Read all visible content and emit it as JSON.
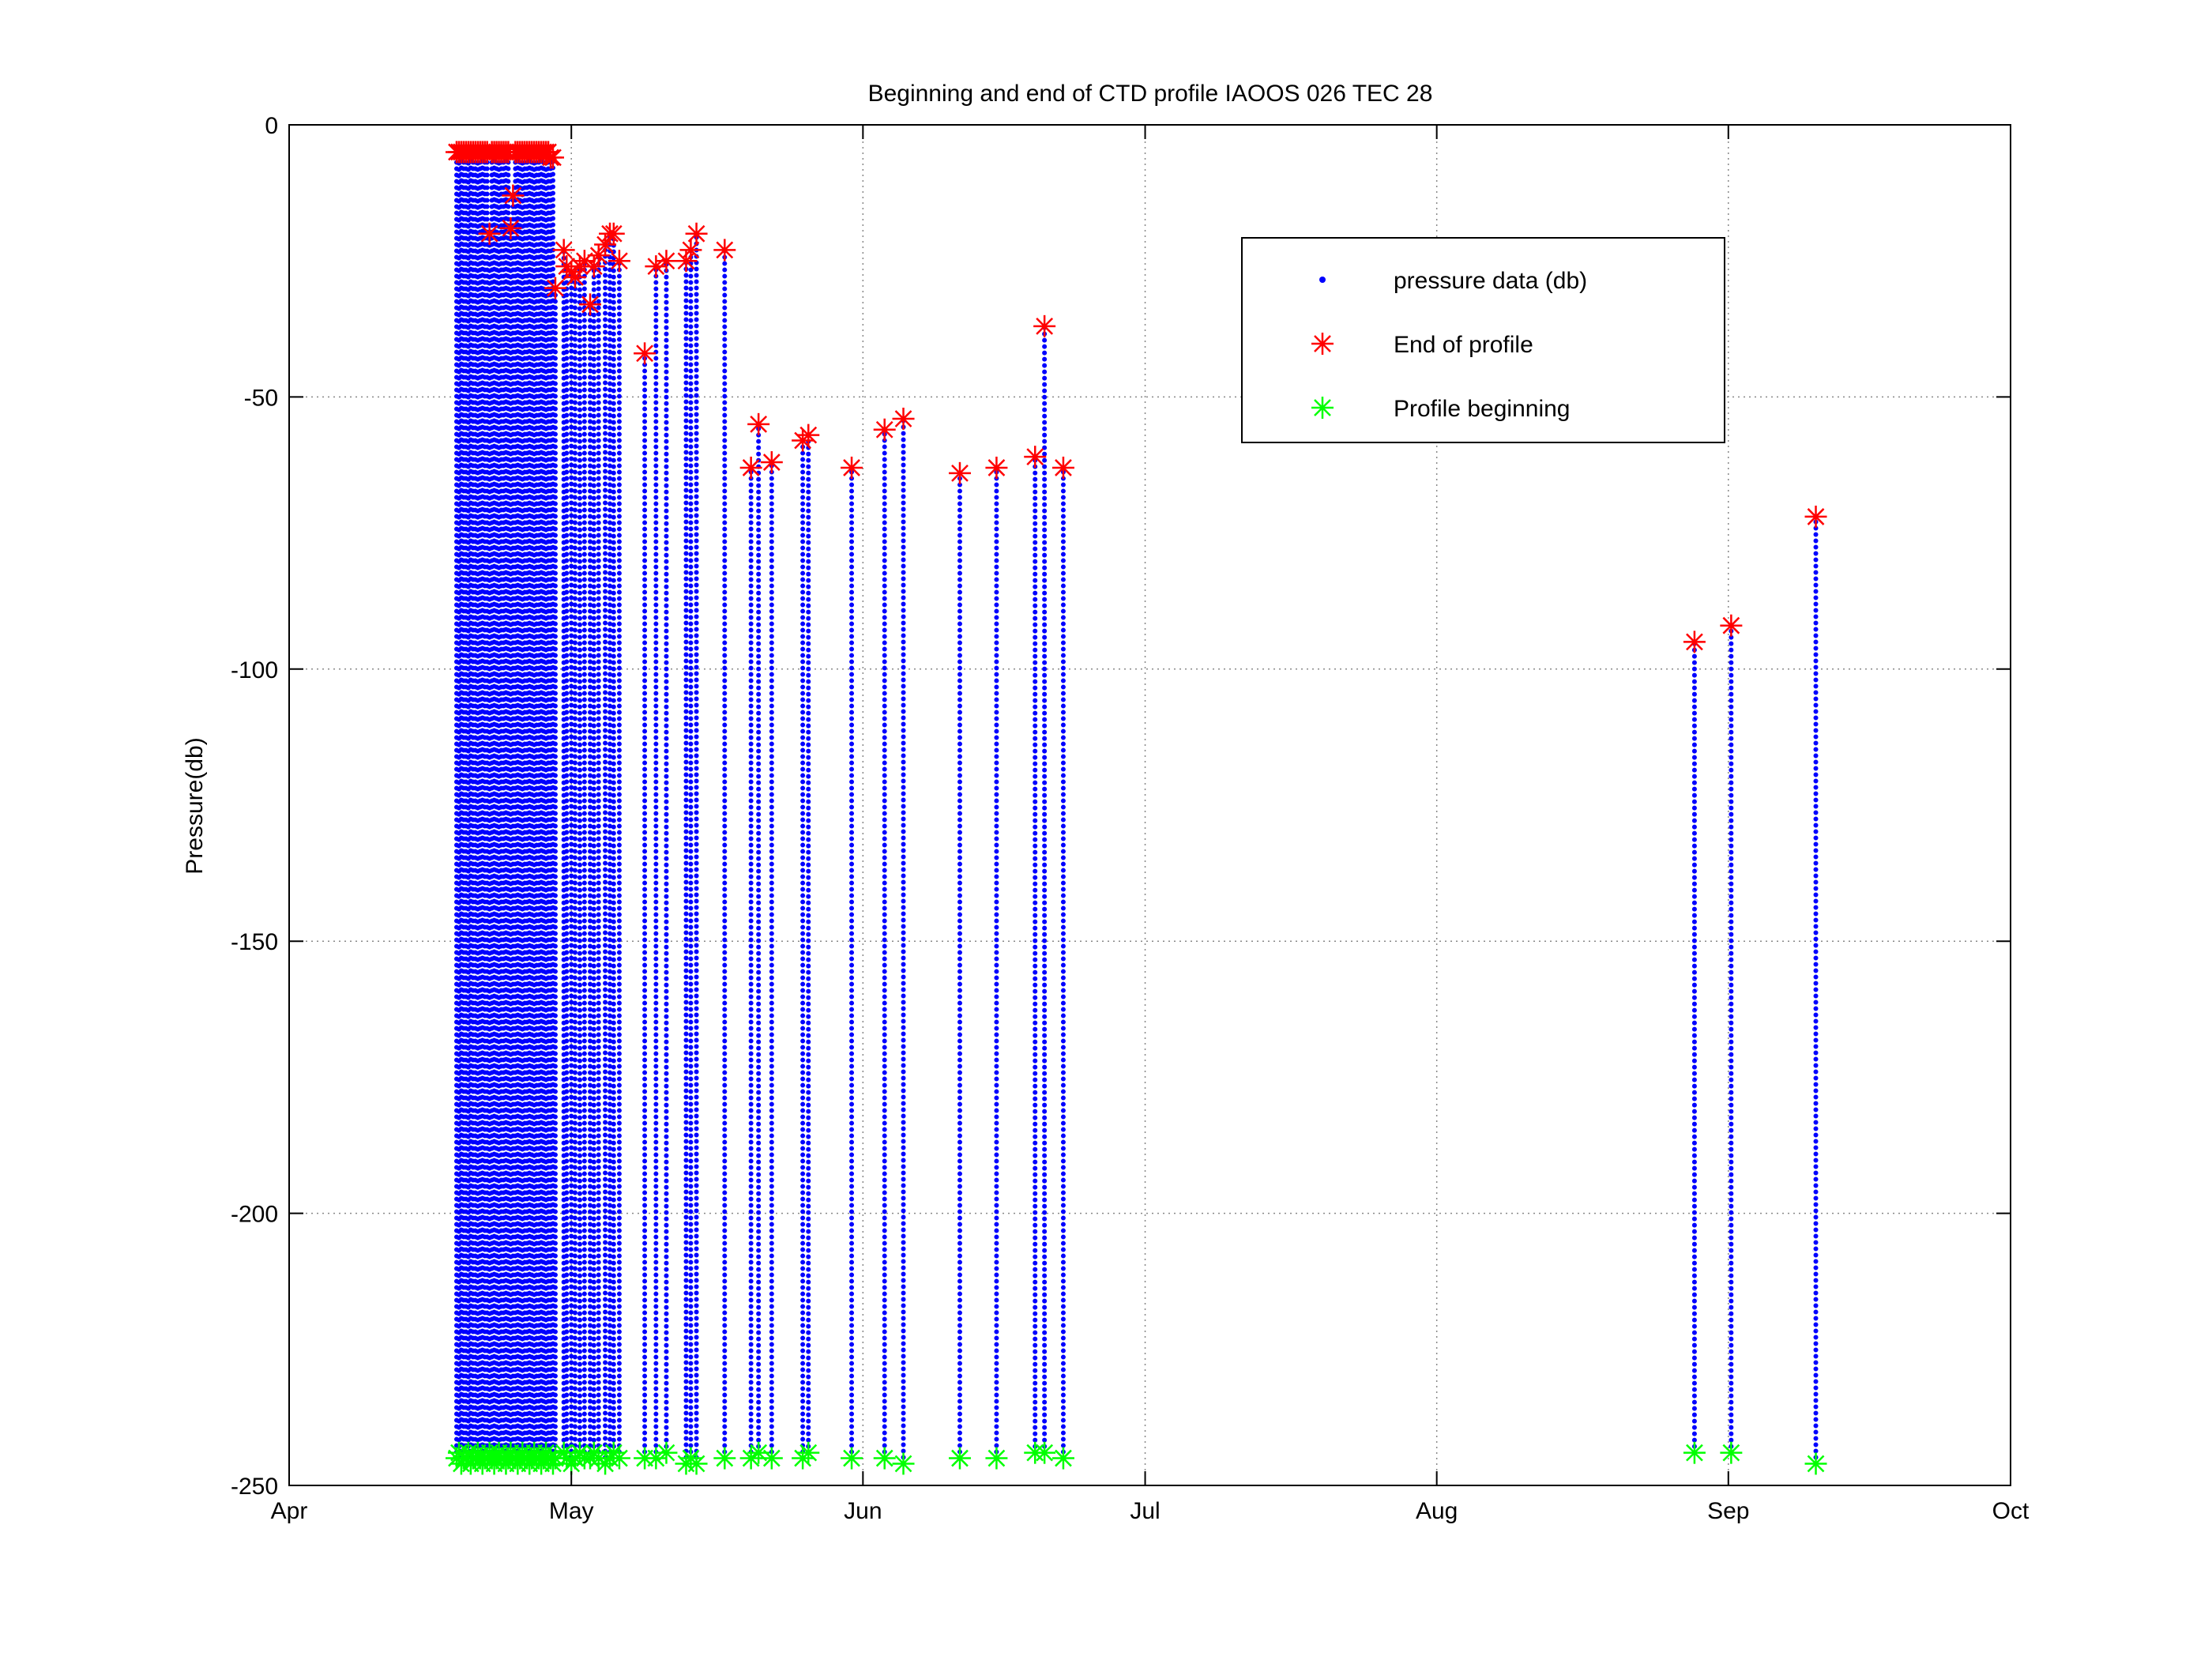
{
  "chart_data": {
    "type": "scatter",
    "title": "Beginning and end of CTD profile IAOOS 026 TEC 28",
    "xlabel": "",
    "ylabel": "Pressure(db)",
    "xlim_days_since_apr1": [
      0,
      183
    ],
    "ylim": [
      -250,
      0
    ],
    "grid": true,
    "x_ticks": [
      {
        "label": "Apr",
        "day": 0
      },
      {
        "label": "May",
        "day": 30
      },
      {
        "label": "Jun",
        "day": 61
      },
      {
        "label": "Jul",
        "day": 91
      },
      {
        "label": "Aug",
        "day": 122
      },
      {
        "label": "Sep",
        "day": 153
      },
      {
        "label": "Oct",
        "day": 183
      }
    ],
    "y_ticks": [
      {
        "label": "0",
        "value": 0
      },
      {
        "label": "-50",
        "value": -50
      },
      {
        "label": "-100",
        "value": -100
      },
      {
        "label": "-150",
        "value": -150
      },
      {
        "label": "-200",
        "value": -200
      },
      {
        "label": "-250",
        "value": -250
      }
    ],
    "legend": {
      "placement": "top-right",
      "entries": [
        {
          "label": "pressure data (db)",
          "marker": "dot",
          "color": "#0000ff"
        },
        {
          "label": "End of profile",
          "marker": "asterisk",
          "color": "#ff0000"
        },
        {
          "label": "Profile beginning",
          "marker": "asterisk",
          "color": "#00ff00"
        }
      ]
    },
    "profile_fields": [
      "day_since_apr1",
      "end_pressure",
      "begin_pressure"
    ],
    "profiles": [
      [
        17.8,
        -5,
        -245
      ],
      [
        18.05,
        -5,
        -244
      ],
      [
        18.3,
        -5,
        -246
      ],
      [
        18.55,
        -5,
        -245
      ],
      [
        18.8,
        -5,
        -245
      ],
      [
        19.05,
        -5,
        -244
      ],
      [
        19.3,
        -5,
        -246
      ],
      [
        19.55,
        -5,
        -245
      ],
      [
        19.8,
        -5,
        -245
      ],
      [
        20.05,
        -5,
        -244
      ],
      [
        20.3,
        -5,
        -245
      ],
      [
        20.55,
        -5,
        -246
      ],
      [
        20.8,
        -5,
        -245
      ],
      [
        21.05,
        -5,
        -245
      ],
      [
        21.3,
        -20,
        -244
      ],
      [
        21.55,
        -5,
        -245
      ],
      [
        21.8,
        -5,
        -246
      ],
      [
        22.05,
        -5,
        -245
      ],
      [
        22.3,
        -5,
        -244
      ],
      [
        22.55,
        -5,
        -245
      ],
      [
        22.8,
        -5,
        -245
      ],
      [
        23.05,
        -5,
        -246
      ],
      [
        23.3,
        -5,
        -245
      ],
      [
        23.55,
        -19,
        -244
      ],
      [
        23.8,
        -13,
        -245
      ],
      [
        24.05,
        -5,
        -245
      ],
      [
        24.3,
        -5,
        -246
      ],
      [
        24.55,
        -5,
        -245
      ],
      [
        24.8,
        -5,
        -244
      ],
      [
        25.05,
        -5,
        -245
      ],
      [
        25.3,
        -5,
        -245
      ],
      [
        25.55,
        -5,
        -246
      ],
      [
        25.8,
        -5,
        -245
      ],
      [
        26.05,
        -5,
        -244
      ],
      [
        26.3,
        -5,
        -245
      ],
      [
        26.55,
        -5,
        -245
      ],
      [
        26.8,
        -5,
        -246
      ],
      [
        27.05,
        -5,
        -245
      ],
      [
        27.3,
        -5,
        -244
      ],
      [
        27.55,
        -5,
        -245
      ],
      [
        27.8,
        -6,
        -245
      ],
      [
        28.05,
        -6,
        -246
      ],
      [
        28.3,
        -30,
        -245
      ],
      [
        29.2,
        -23,
        -244
      ],
      [
        29.5,
        -26,
        -245
      ],
      [
        30.0,
        -27,
        -246
      ],
      [
        30.4,
        -28,
        -245
      ],
      [
        30.9,
        -26,
        -244
      ],
      [
        31.4,
        -25,
        -245
      ],
      [
        32.0,
        -33,
        -245
      ],
      [
        32.4,
        -26,
        -244
      ],
      [
        32.9,
        -24,
        -245
      ],
      [
        33.6,
        -22,
        -246
      ],
      [
        34.1,
        -20,
        -245
      ],
      [
        34.5,
        -20,
        -244
      ],
      [
        35.1,
        -25,
        -245
      ],
      [
        37.8,
        -42,
        -245
      ],
      [
        39.0,
        -26,
        -245
      ],
      [
        40.1,
        -25,
        -244
      ],
      [
        42.2,
        -25,
        -246
      ],
      [
        42.7,
        -23,
        -245
      ],
      [
        43.3,
        -20,
        -246
      ],
      [
        46.3,
        -23,
        -245
      ],
      [
        49.1,
        -63,
        -245
      ],
      [
        49.9,
        -55,
        -244
      ],
      [
        51.3,
        -62,
        -245
      ],
      [
        54.6,
        -58,
        -245
      ],
      [
        55.2,
        -57,
        -244
      ],
      [
        59.8,
        -63,
        -245
      ],
      [
        63.3,
        -56,
        -245
      ],
      [
        65.3,
        -54,
        -246
      ],
      [
        71.3,
        -64,
        -245
      ],
      [
        75.2,
        -63,
        -245
      ],
      [
        79.3,
        -61,
        -244
      ],
      [
        80.3,
        -37,
        -244
      ],
      [
        82.3,
        -63,
        -245
      ],
      [
        149.4,
        -95,
        -244
      ],
      [
        153.3,
        -92,
        -244
      ],
      [
        162.3,
        -72,
        -246
      ]
    ]
  }
}
